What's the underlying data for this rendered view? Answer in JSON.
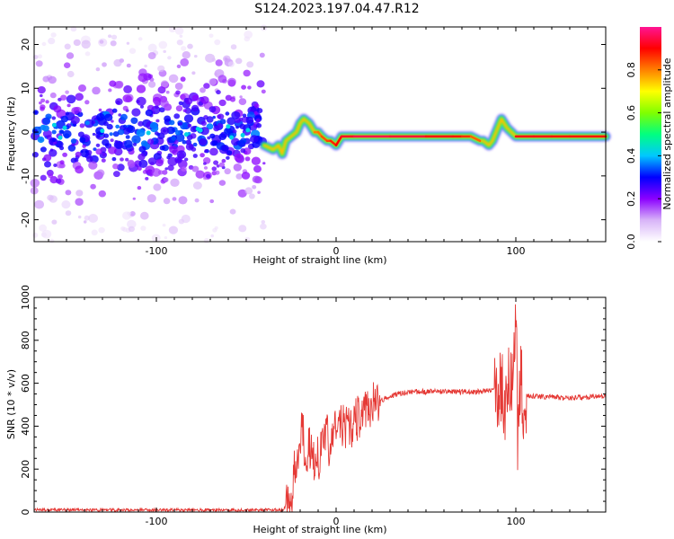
{
  "title": "S124.2023.197.04.47.R12",
  "colors": {
    "snr_line": "#e53935",
    "frame": "#000000"
  },
  "chart_data": [
    {
      "type": "heatmap",
      "title": "S124.2023.197.04.47.R12",
      "xlabel": "Height of straight line (km)",
      "ylabel": "Frequency (Hz)",
      "xlim": [
        -168,
        150
      ],
      "ylim": [
        -25,
        24
      ],
      "x_ticks": [
        -100,
        0,
        100
      ],
      "y_ticks": [
        -20,
        -10,
        0,
        10,
        20
      ],
      "colorbar": {
        "label": "Normalized spectral amplitude",
        "range": [
          0,
          1
        ],
        "ticks": [
          0.0,
          0.2,
          0.4,
          0.6,
          0.8
        ],
        "colormap": [
          "#ffffff",
          "#d8b4f8",
          "#8b00ff",
          "#0000ff",
          "#00c8ff",
          "#00ff80",
          "#80ff00",
          "#ffff00",
          "#ff8000",
          "#ff0000",
          "#ff1493"
        ]
      },
      "scatter_region": {
        "x_range": [
          -168,
          -40
        ],
        "y_range": [
          -25,
          24
        ]
      },
      "ridge": {
        "x": [
          -40,
          -35,
          -32,
          -30,
          -28,
          -25,
          -22,
          -20,
          -18,
          -15,
          -12,
          -10,
          -8,
          -5,
          -3,
          0,
          3,
          10,
          30,
          50,
          65,
          70,
          75,
          80,
          82,
          85,
          87,
          88,
          90,
          92,
          95,
          100,
          110,
          120,
          130,
          150
        ],
        "y": [
          -3,
          -4,
          -3,
          -5,
          -2,
          -1,
          0,
          2,
          3,
          2,
          0,
          0,
          -1,
          -2,
          -2,
          -3,
          -1,
          -1,
          -1,
          -1,
          -1,
          -1,
          -1,
          -2,
          -2,
          -3,
          -2,
          -1,
          1,
          3,
          1,
          -1,
          -1,
          -1,
          -1,
          -1
        ],
        "amplitude": [
          0.4,
          0.45,
          0.55,
          0.6,
          0.5,
          0.55,
          0.6,
          0.7,
          0.65,
          0.75,
          0.8,
          0.8,
          0.82,
          0.85,
          0.85,
          0.9,
          0.9,
          0.95,
          0.95,
          0.92,
          0.9,
          0.88,
          0.85,
          0.8,
          0.7,
          0.6,
          0.55,
          0.5,
          0.45,
          0.5,
          0.6,
          0.9,
          0.92,
          0.9,
          0.88,
          0.9
        ]
      }
    },
    {
      "type": "line",
      "xlabel": "Height of straight line (km)",
      "ylabel": "SNR (10 * v/v)",
      "xlim": [
        -168,
        150
      ],
      "ylim": [
        0,
        1000
      ],
      "x_ticks": [
        -100,
        0,
        100
      ],
      "y_ticks": [
        0,
        200,
        400,
        600,
        800,
        1000
      ],
      "series": [
        {
          "x": [
            -168,
            -140,
            -100,
            -60,
            -30,
            -25,
            -23,
            -21,
            -19,
            -17,
            -15,
            -13,
            -11,
            -9,
            -7,
            -5,
            -3,
            -1,
            1,
            3,
            5,
            8,
            10,
            12,
            15,
            18,
            20,
            25,
            30,
            40,
            60,
            80,
            90,
            92,
            94,
            96,
            98,
            99,
            100,
            101,
            102,
            103,
            104,
            105,
            106,
            110,
            130,
            150
          ],
          "y": [
            10,
            10,
            10,
            10,
            10,
            40,
            200,
            260,
            430,
            250,
            340,
            200,
            300,
            250,
            320,
            350,
            280,
            380,
            400,
            420,
            380,
            400,
            420,
            440,
            460,
            480,
            500,
            520,
            540,
            560,
            560,
            560,
            570,
            600,
            480,
            680,
            560,
            780,
            1000,
            350,
            560,
            620,
            480,
            560,
            540,
            540,
            530,
            540
          ]
        }
      ]
    }
  ]
}
